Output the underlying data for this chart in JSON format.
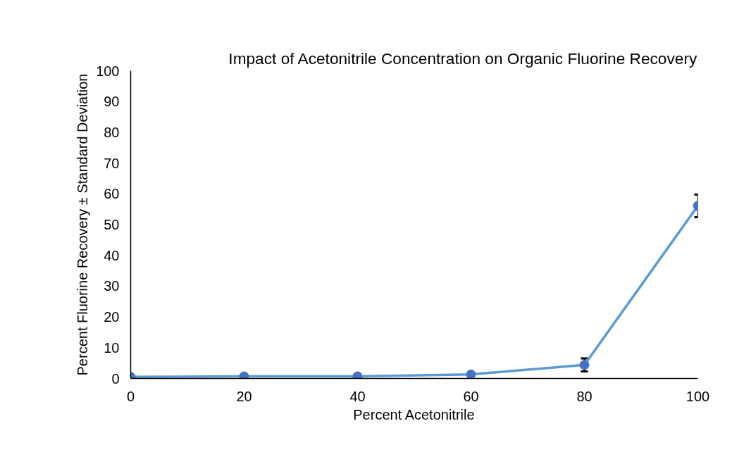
{
  "chart_data": {
    "type": "line",
    "title": "Impact of Acetonitrile Concentration on Organic Fluorine Recovery",
    "xlabel": "Percent Acetonitrile",
    "ylabel": "Percent Fluorine Recovery ± Standard Deviation",
    "x": [
      0,
      20,
      40,
      60,
      80,
      100
    ],
    "series": [
      {
        "color": "#5b9bd5",
        "values": [
          0.5,
          0.7,
          0.7,
          1.3,
          4.4,
          56.1
        ],
        "errors": [
          null,
          null,
          null,
          null,
          2.1,
          3.7
        ]
      }
    ],
    "marker": "circle",
    "line_style": "solid",
    "grid": false,
    "xlim": [
      0,
      100
    ],
    "xticks": [
      0,
      20,
      40,
      60,
      80,
      100
    ],
    "ylim": [
      0,
      100
    ],
    "yticks": [
      0,
      10,
      20,
      30,
      40,
      50,
      60,
      70,
      80,
      90,
      100
    ]
  }
}
